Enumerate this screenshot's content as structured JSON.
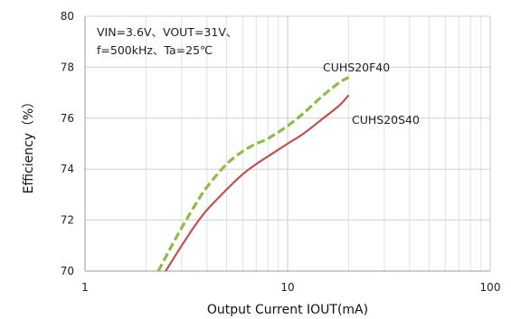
{
  "chart_data": {
    "type": "line",
    "xscale": "log",
    "xlim": [
      1,
      100
    ],
    "ylim": [
      70,
      80
    ],
    "xticks": [
      "1",
      "10",
      "100"
    ],
    "yticks": [
      "70",
      "72",
      "74",
      "76",
      "78",
      "80"
    ],
    "xlabel": "Output Current IOUT(mA)",
    "ylabel": "Efficiency（%）",
    "grid": true,
    "annotation_lines": [
      "VIN=3.6V、VOUT=31V、",
      "f=500kHz、Ta=25℃"
    ],
    "series": [
      {
        "name": "CUHS20F40",
        "color": "#8cbd4a",
        "dash": true,
        "points": [
          [
            2.3,
            70.0
          ],
          [
            2.6,
            70.8
          ],
          [
            3.0,
            71.7
          ],
          [
            3.5,
            72.6
          ],
          [
            4.0,
            73.3
          ],
          [
            5.0,
            74.2
          ],
          [
            6.0,
            74.7
          ],
          [
            7.0,
            75.0
          ],
          [
            8.0,
            75.2
          ],
          [
            10.0,
            75.7
          ],
          [
            12.0,
            76.2
          ],
          [
            15.0,
            76.9
          ],
          [
            18.0,
            77.4
          ],
          [
            20.0,
            77.6
          ]
        ]
      },
      {
        "name": "CUHS20S40",
        "color": "#c0504d",
        "dash": false,
        "points": [
          [
            2.5,
            70.0
          ],
          [
            3.0,
            71.0
          ],
          [
            3.5,
            71.8
          ],
          [
            4.0,
            72.4
          ],
          [
            5.0,
            73.2
          ],
          [
            6.0,
            73.8
          ],
          [
            7.0,
            74.2
          ],
          [
            8.0,
            74.5
          ],
          [
            10.0,
            75.0
          ],
          [
            12.0,
            75.4
          ],
          [
            15.0,
            76.0
          ],
          [
            18.0,
            76.5
          ],
          [
            20.0,
            76.9
          ]
        ]
      }
    ]
  }
}
